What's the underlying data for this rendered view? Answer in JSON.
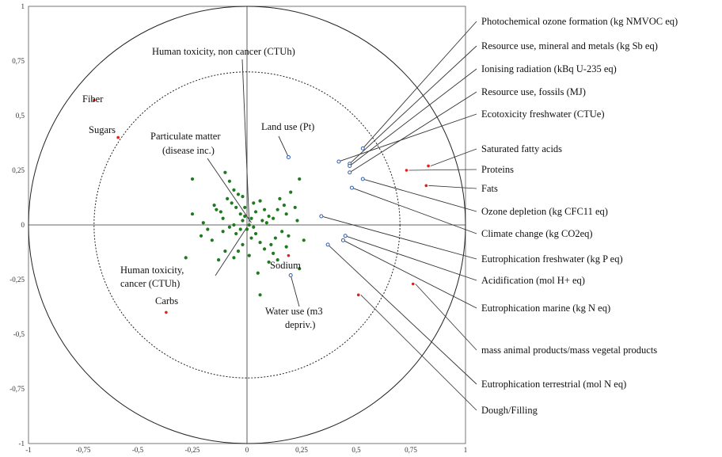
{
  "chart_data": {
    "type": "scatter",
    "title": "",
    "xlabel": "",
    "ylabel": "",
    "xlim": [
      -1,
      1
    ],
    "ylim": [
      -1,
      1
    ],
    "x_ticks": [
      "-1",
      "-0,75",
      "-0,5",
      "-0,25",
      "0",
      "0,25",
      "0,5",
      "0,75",
      "1"
    ],
    "y_ticks": [
      "1",
      "0,75",
      "0,5",
      "0,25",
      "0",
      "-0,25",
      "-0,5",
      "-0,75",
      "-1"
    ],
    "circles": [
      1.0,
      0.7
    ],
    "colors": {
      "observations": "#1f7a1f",
      "supplementary": "#e0201b",
      "impact": "#2f5fb3"
    },
    "supplementary_variables": [
      {
        "label": "Fiber",
        "x": -0.7,
        "y": 0.57
      },
      {
        "label": "Sugars",
        "x": -0.59,
        "y": 0.4
      },
      {
        "label": "Carbs",
        "x": -0.37,
        "y": -0.4
      },
      {
        "label": "Sodium",
        "x": 0.19,
        "y": -0.14
      },
      {
        "label": "Saturated fatty acids",
        "x": 0.83,
        "y": 0.27
      },
      {
        "label": "Proteins",
        "x": 0.73,
        "y": 0.25
      },
      {
        "label": "Fats",
        "x": 0.82,
        "y": 0.18
      },
      {
        "label": "mass animal products/mass vegetal products",
        "x": 0.76,
        "y": -0.27
      },
      {
        "label": "Dough/Filling",
        "x": 0.51,
        "y": -0.32
      }
    ],
    "impact_categories": [
      {
        "label": "Human toxicity, non cancer (CTUh)",
        "x": 0.01,
        "y": 0.01
      },
      {
        "label": "Particulate matter (disease inc.)",
        "x": 0.02,
        "y": 0.01
      },
      {
        "label": "Human toxicity, cancer (CTUh)",
        "x": 0.0,
        "y": -0.01
      },
      {
        "label": "Land use (Pt)",
        "x": 0.19,
        "y": 0.31
      },
      {
        "label": "Water use (m3 depriv.)",
        "x": 0.2,
        "y": -0.23
      },
      {
        "label": "Photochemical ozone formation (kg NMVOC eq)",
        "x": 0.53,
        "y": 0.35
      },
      {
        "label": "Resource use, mineral and metals (kg Sb eq)",
        "x": 0.47,
        "y": 0.28
      },
      {
        "label": "Ionising radiation (kBq U-235 eq)",
        "x": 0.47,
        "y": 0.27
      },
      {
        "label": "Resource use, fossils (MJ)",
        "x": 0.47,
        "y": 0.24
      },
      {
        "label": "Ecotoxicity freshwater (CTUe)",
        "x": 0.42,
        "y": 0.29
      },
      {
        "label": "Ozone depletion (kg CFC11 eq)",
        "x": 0.53,
        "y": 0.21
      },
      {
        "label": "Climate change (kg CO2eq)",
        "x": 0.48,
        "y": 0.17
      },
      {
        "label": "Eutrophication freshwater (kg P eq)",
        "x": 0.34,
        "y": 0.04
      },
      {
        "label": "Acidification (mol H+ eq)",
        "x": 0.45,
        "y": -0.05
      },
      {
        "label": "Eutrophication marine (kg N eq)",
        "x": 0.44,
        "y": -0.07
      },
      {
        "label": "Eutrophication terrestrial (mol N eq)",
        "x": 0.37,
        "y": -0.09
      }
    ],
    "observations": [
      [
        -0.25,
        0.21
      ],
      [
        -0.1,
        0.24
      ],
      [
        -0.08,
        0.2
      ],
      [
        -0.06,
        0.16
      ],
      [
        -0.07,
        0.1
      ],
      [
        -0.15,
        0.09
      ],
      [
        -0.14,
        0.07
      ],
      [
        -0.12,
        0.06
      ],
      [
        -0.09,
        0.12
      ],
      [
        -0.04,
        0.14
      ],
      [
        -0.02,
        0.13
      ],
      [
        -0.05,
        0.08
      ],
      [
        -0.03,
        0.05
      ],
      [
        -0.01,
        0.08
      ],
      [
        -0.2,
        0.01
      ],
      [
        -0.25,
        0.05
      ],
      [
        -0.18,
        -0.02
      ],
      [
        -0.21,
        -0.05
      ],
      [
        -0.16,
        -0.07
      ],
      [
        -0.11,
        -0.03
      ],
      [
        -0.08,
        -0.01
      ],
      [
        -0.05,
        -0.04
      ],
      [
        -0.03,
        -0.02
      ],
      [
        -0.02,
        0.02
      ],
      [
        0.01,
        0.0
      ],
      [
        0.02,
        0.03
      ],
      [
        0.04,
        0.06
      ],
      [
        0.03,
        0.1
      ],
      [
        0.06,
        0.11
      ],
      [
        0.08,
        0.07
      ],
      [
        0.1,
        0.04
      ],
      [
        0.09,
        0.01
      ],
      [
        0.12,
        0.03
      ],
      [
        0.14,
        0.07
      ],
      [
        0.15,
        0.12
      ],
      [
        0.17,
        0.09
      ],
      [
        0.18,
        0.05
      ],
      [
        0.2,
        0.15
      ],
      [
        0.22,
        0.08
      ],
      [
        0.24,
        0.21
      ],
      [
        0.23,
        0.02
      ],
      [
        0.19,
        -0.05
      ],
      [
        0.16,
        -0.03
      ],
      [
        0.13,
        -0.06
      ],
      [
        0.11,
        -0.09
      ],
      [
        0.08,
        -0.11
      ],
      [
        0.06,
        -0.08
      ],
      [
        0.04,
        -0.04
      ],
      [
        0.02,
        -0.06
      ],
      [
        -0.02,
        -0.09
      ],
      [
        -0.04,
        -0.12
      ],
      [
        -0.06,
        -0.15
      ],
      [
        -0.1,
        -0.12
      ],
      [
        -0.13,
        -0.16
      ],
      [
        -0.28,
        -0.15
      ],
      [
        0.0,
        -0.02
      ],
      [
        0.01,
        -0.14
      ],
      [
        0.05,
        -0.22
      ],
      [
        0.1,
        -0.17
      ],
      [
        0.14,
        -0.16
      ],
      [
        0.18,
        -0.1
      ],
      [
        0.24,
        -0.2
      ],
      [
        0.06,
        -0.32
      ],
      [
        0.26,
        -0.07
      ],
      [
        -0.06,
        0.0
      ],
      [
        -0.01,
        0.04
      ],
      [
        0.03,
        -0.01
      ],
      [
        0.07,
        0.02
      ],
      [
        -0.11,
        0.03
      ],
      [
        0.12,
        -0.13
      ]
    ]
  }
}
